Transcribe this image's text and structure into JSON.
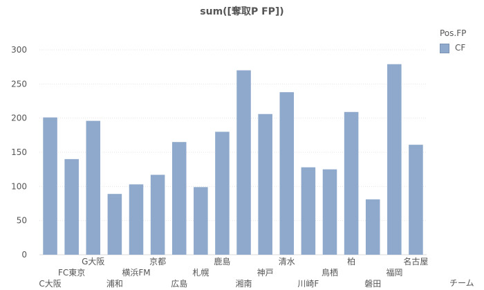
{
  "chart_data": {
    "type": "bar",
    "title": "sum([奪取P FP])",
    "xlabel": "チーム",
    "ylabel": "",
    "ylim": [
      0,
      300
    ],
    "yticks": [
      0,
      50,
      100,
      150,
      200,
      250,
      300
    ],
    "grid": true,
    "legend": {
      "title": "Pos.FP",
      "position": "top-right"
    },
    "categories": [
      "C大阪",
      "FC東京",
      "G大阪",
      "浦和",
      "横浜FM",
      "京都",
      "広島",
      "札幌",
      "鹿島",
      "湘南",
      "神戸",
      "清水",
      "川崎F",
      "鳥栖",
      "柏",
      "磐田",
      "福岡",
      "名古屋"
    ],
    "series": [
      {
        "name": "CF",
        "color": "#8ea9cb",
        "values": [
          201,
          140,
          196,
          89,
          103,
          117,
          165,
          99,
          180,
          270,
          206,
          238,
          128,
          125,
          209,
          81,
          279,
          161
        ]
      }
    ]
  }
}
